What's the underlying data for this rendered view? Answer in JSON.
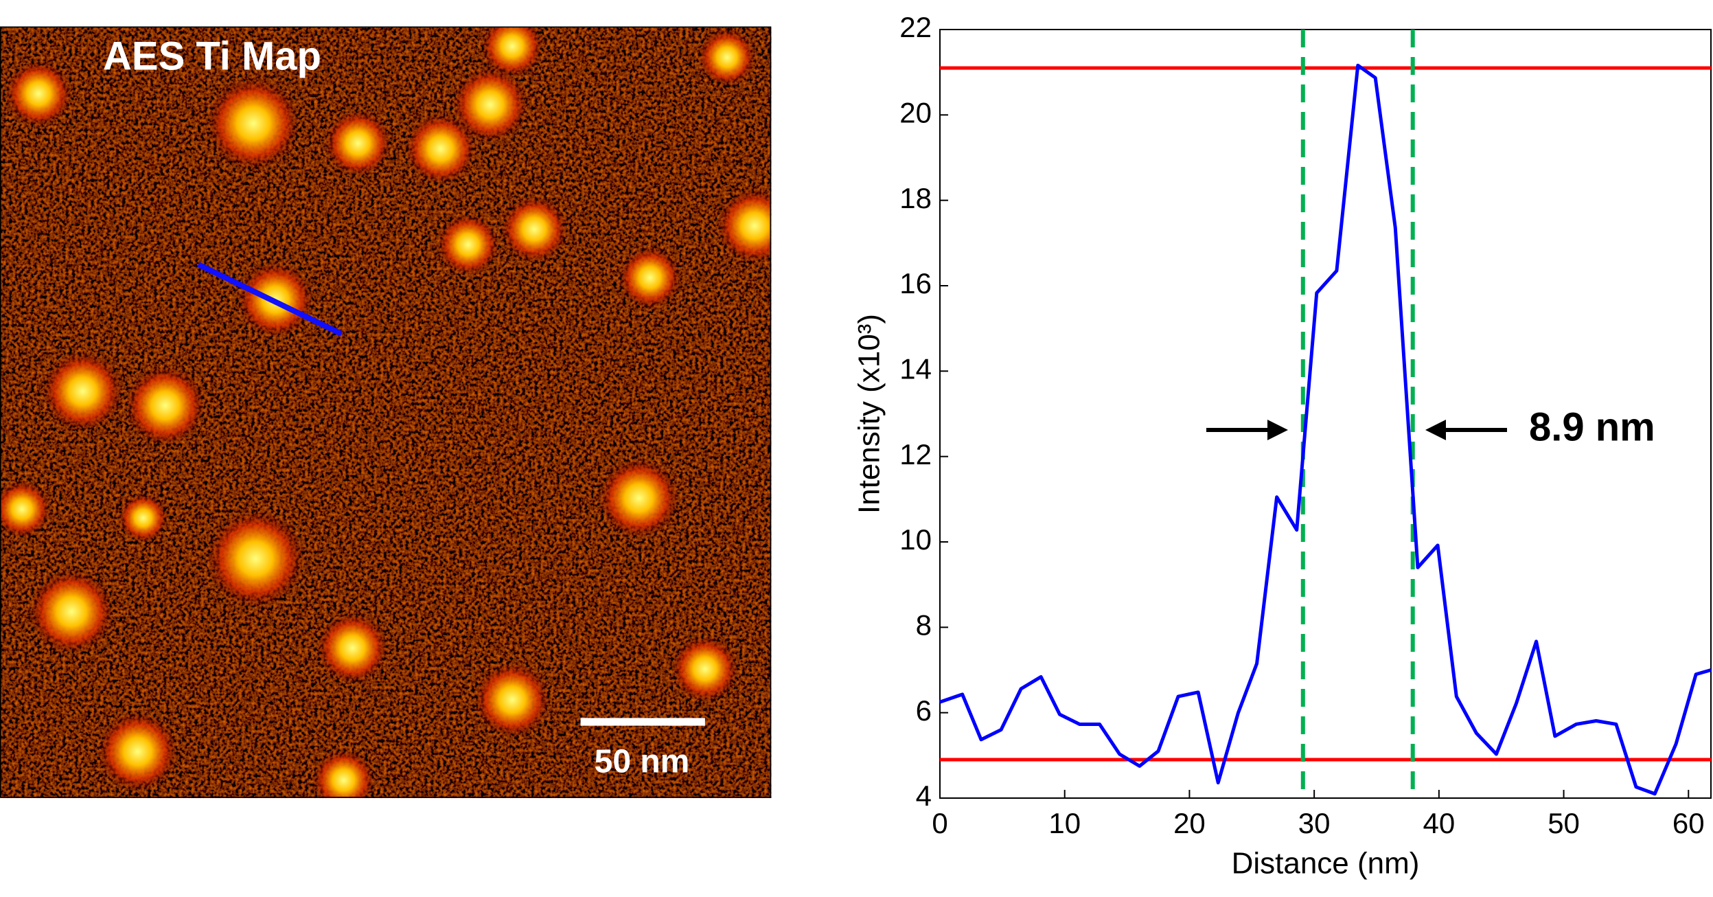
{
  "image_panel": {
    "title": "AES Ti Map",
    "scale_bar": "50 nm"
  },
  "chart_data": {
    "type": "line",
    "xlabel": "Distance (nm)",
    "ylabel": "Intensity (x10³)",
    "xlim": [
      0,
      61.8
    ],
    "ylim": [
      4,
      22
    ],
    "xticks": [
      0,
      10,
      20,
      30,
      40,
      50,
      60
    ],
    "yticks": [
      4,
      6,
      8,
      10,
      12,
      14,
      16,
      18,
      20,
      22
    ],
    "series": [
      {
        "color": "#0000ff",
        "x": [
          0,
          1.8,
          3.3,
          4.9,
          6.5,
          8.1,
          9.6,
          11.2,
          12.8,
          14.4,
          16.0,
          17.5,
          19.1,
          20.7,
          22.3,
          23.9,
          25.4,
          27.0,
          28.6,
          30.2,
          31.8,
          33.5,
          34.9,
          36.5,
          38.3,
          39.9,
          41.4,
          43.0,
          44.6,
          46.2,
          47.8,
          49.3,
          51.0,
          52.6,
          54.2,
          55.8,
          57.3,
          59.0,
          60.6,
          61.8
        ],
        "values": [
          6.25,
          6.43,
          5.37,
          5.6,
          6.56,
          6.84,
          5.96,
          5.73,
          5.73,
          5.03,
          4.75,
          5.1,
          6.38,
          6.48,
          4.36,
          5.99,
          7.15,
          11.05,
          10.28,
          15.83,
          16.35,
          21.16,
          20.87,
          17.36,
          9.4,
          9.92,
          6.38,
          5.52,
          5.03,
          6.22,
          7.67,
          5.45,
          5.73,
          5.81,
          5.73,
          4.26,
          4.1,
          5.27,
          6.9,
          7.0
        ]
      }
    ],
    "hlines": [
      {
        "value": 21.1,
        "color": "#ff0000"
      },
      {
        "value": 4.9,
        "color": "#ff0000"
      }
    ],
    "vlines": [
      {
        "value": 29.1,
        "color": "#00b050",
        "dashed": true
      },
      {
        "value": 37.9,
        "color": "#00b050",
        "dashed": true
      }
    ],
    "annotation": "8.9 nm"
  }
}
